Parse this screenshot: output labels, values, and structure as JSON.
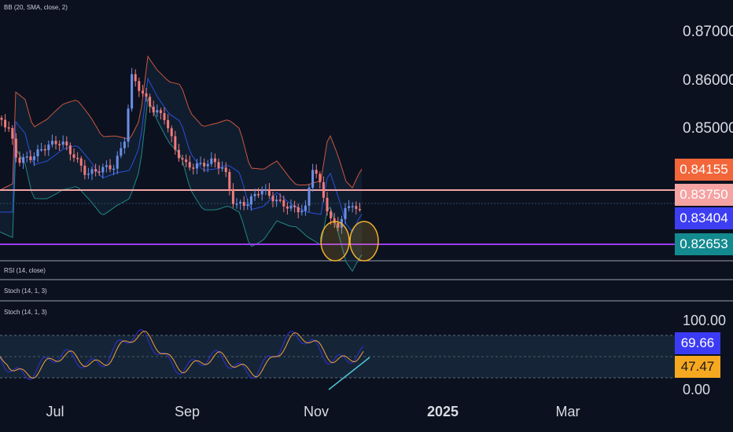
{
  "panes": {
    "main_indicator": "BB (20, SMA, close, 2)",
    "rsi": "RSI (14, close)",
    "stoch_1": "Stoch (14, 1, 3)",
    "stoch_2": "Stoch (14, 1, 3)"
  },
  "price_axis": {
    "ticks": [
      "0.87000",
      "0.86000",
      "0.85000"
    ],
    "labels": {
      "bb_upper": {
        "value": "0.84155",
        "color": "#f2663a"
      },
      "resistance": {
        "value": "0.83750",
        "color": "#f5a3a3"
      },
      "last_price": {
        "value": "0.83404",
        "color": "#3d3df2"
      },
      "support": {
        "value": "0.82653",
        "color": "#138a8f"
      }
    }
  },
  "stoch_axis": {
    "ticks": [
      "100.00",
      "0.00"
    ],
    "k_value": {
      "value": "69.66",
      "color": "#3b3bf5"
    },
    "d_value": {
      "value": "47.47",
      "color": "#f6a821"
    }
  },
  "time_axis": [
    "Jul",
    "Sep",
    "Nov",
    "2025",
    "Mar"
  ],
  "colors": {
    "background": "#0c1120",
    "candle_up": "#6b8fe8",
    "candle_down": "#ef7b7b",
    "bb_basis": "#2b4fd8",
    "bb_upper": "#c8573f",
    "bb_lower": "#1f8a82",
    "resistance_line": "#f3a3a3",
    "support_line": "#9b3cf0",
    "highlight_circle": "#f0b02a",
    "stoch_k": "#3030d8",
    "stoch_d": "#f2a33c",
    "trendline": "#4fc3d6"
  }
}
